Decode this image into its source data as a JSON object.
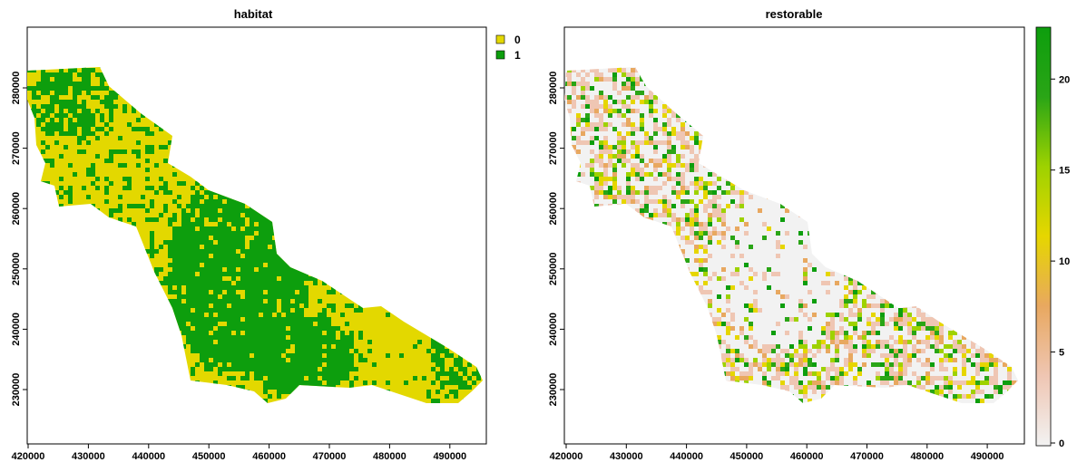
{
  "colors": {
    "habitat_0": "#e3d800",
    "habitat_1": "#0d9e0d",
    "restorable_gradient": [
      "#f2f2f2",
      "#efc6b3",
      "#e8a860",
      "#e6d600",
      "#9ed200",
      "#2aa516",
      "#0d9e0d"
    ]
  },
  "maps": [
    {
      "title": "habitat",
      "legend_type": "categorical",
      "legend": [
        {
          "label": "0",
          "color": "#e3d800"
        },
        {
          "label": "1",
          "color": "#0d9e0d"
        }
      ],
      "x_ticks": [
        "420000",
        "430000",
        "440000",
        "450000",
        "460000",
        "470000",
        "480000",
        "490000"
      ],
      "y_ticks": [
        "230000",
        "240000",
        "250000",
        "260000",
        "270000",
        "280000"
      ]
    },
    {
      "title": "restorable",
      "legend_type": "continuous",
      "legend_ticks": [
        "0",
        "5",
        "10",
        "15",
        "20"
      ],
      "x_ticks": [
        "420000",
        "430000",
        "440000",
        "450000",
        "460000",
        "470000",
        "480000",
        "490000"
      ],
      "y_ticks": [
        "230000",
        "240000",
        "250000",
        "260000",
        "270000",
        "280000"
      ]
    }
  ]
}
